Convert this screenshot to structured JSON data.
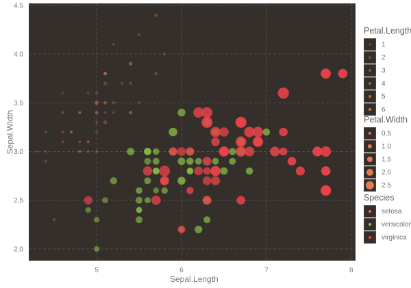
{
  "chart_data": {
    "type": "scatter",
    "title": "",
    "xlabel": "Sepal.Length",
    "ylabel": "Sepal.Width",
    "xlim": [
      4.2,
      8.05
    ],
    "ylim": [
      1.88,
      4.52
    ],
    "xticks": [
      5,
      6,
      7,
      8
    ],
    "yticks": [
      2.0,
      2.5,
      3.0,
      3.5,
      4.0,
      4.5
    ],
    "ytick_labels": [
      "2.0",
      "2.5",
      "3.0",
      "3.5",
      "4.0",
      "4.5"
    ],
    "grid": true,
    "background": "#352f2b",
    "legend_position": "right",
    "aesthetics": {
      "x": "Sepal.Length",
      "y": "Sepal.Width",
      "alpha": "Petal.Length",
      "size": "Petal.Width",
      "color": "Species"
    },
    "colors": {
      "setosa": "#e07b50",
      "versicolor": "#8bc34a",
      "virginica": "#e8434a"
    },
    "legends": {
      "alpha": {
        "title": "Petal.Length",
        "labels": [
          "1",
          "2",
          "3",
          "4",
          "5",
          "6"
        ]
      },
      "size": {
        "title": "Petal.Width",
        "labels": [
          "0.5",
          "1.0",
          "1.5",
          "2.0",
          "2.5"
        ]
      },
      "color": {
        "title": "Species",
        "labels": [
          "setosa",
          "versicolor",
          "virginica"
        ]
      }
    },
    "columns": [
      "Sepal.Length",
      "Sepal.Width",
      "Petal.Length",
      "Petal.Width",
      "Species"
    ],
    "points": [
      [
        5.1,
        3.5,
        1.4,
        0.2,
        "setosa"
      ],
      [
        4.9,
        3.0,
        1.4,
        0.2,
        "setosa"
      ],
      [
        4.7,
        3.2,
        1.3,
        0.2,
        "setosa"
      ],
      [
        4.6,
        3.1,
        1.5,
        0.2,
        "setosa"
      ],
      [
        5.0,
        3.6,
        1.4,
        0.2,
        "setosa"
      ],
      [
        5.4,
        3.9,
        1.7,
        0.4,
        "setosa"
      ],
      [
        4.6,
        3.4,
        1.4,
        0.3,
        "setosa"
      ],
      [
        5.0,
        3.4,
        1.5,
        0.2,
        "setosa"
      ],
      [
        4.4,
        2.9,
        1.4,
        0.2,
        "setosa"
      ],
      [
        4.9,
        3.1,
        1.5,
        0.1,
        "setosa"
      ],
      [
        5.4,
        3.7,
        1.5,
        0.2,
        "setosa"
      ],
      [
        4.8,
        3.4,
        1.6,
        0.2,
        "setosa"
      ],
      [
        4.8,
        3.0,
        1.4,
        0.1,
        "setosa"
      ],
      [
        4.3,
        3.0,
        1.1,
        0.1,
        "setosa"
      ],
      [
        5.8,
        4.0,
        1.2,
        0.2,
        "setosa"
      ],
      [
        5.7,
        4.4,
        1.5,
        0.4,
        "setosa"
      ],
      [
        5.4,
        3.9,
        1.3,
        0.4,
        "setosa"
      ],
      [
        5.1,
        3.5,
        1.4,
        0.3,
        "setosa"
      ],
      [
        5.7,
        3.8,
        1.7,
        0.3,
        "setosa"
      ],
      [
        5.1,
        3.8,
        1.5,
        0.3,
        "setosa"
      ],
      [
        5.4,
        3.4,
        1.7,
        0.2,
        "setosa"
      ],
      [
        5.1,
        3.7,
        1.5,
        0.4,
        "setosa"
      ],
      [
        4.6,
        3.6,
        1.0,
        0.2,
        "setosa"
      ],
      [
        5.1,
        3.3,
        1.7,
        0.5,
        "setosa"
      ],
      [
        4.8,
        3.4,
        1.9,
        0.2,
        "setosa"
      ],
      [
        5.0,
        3.0,
        1.6,
        0.2,
        "setosa"
      ],
      [
        5.0,
        3.4,
        1.6,
        0.4,
        "setosa"
      ],
      [
        5.2,
        3.5,
        1.5,
        0.2,
        "setosa"
      ],
      [
        5.2,
        3.4,
        1.4,
        0.2,
        "setosa"
      ],
      [
        4.7,
        3.2,
        1.6,
        0.2,
        "setosa"
      ],
      [
        4.8,
        3.1,
        1.6,
        0.2,
        "setosa"
      ],
      [
        5.4,
        3.4,
        1.5,
        0.4,
        "setosa"
      ],
      [
        5.2,
        4.1,
        1.5,
        0.1,
        "setosa"
      ],
      [
        5.5,
        4.2,
        1.4,
        0.2,
        "setosa"
      ],
      [
        4.9,
        3.1,
        1.5,
        0.2,
        "setosa"
      ],
      [
        5.0,
        3.2,
        1.2,
        0.2,
        "setosa"
      ],
      [
        5.5,
        3.5,
        1.3,
        0.2,
        "setosa"
      ],
      [
        4.9,
        3.6,
        1.4,
        0.1,
        "setosa"
      ],
      [
        4.4,
        3.0,
        1.3,
        0.2,
        "setosa"
      ],
      [
        5.1,
        3.4,
        1.5,
        0.2,
        "setosa"
      ],
      [
        5.0,
        3.5,
        1.3,
        0.3,
        "setosa"
      ],
      [
        4.5,
        2.3,
        1.3,
        0.3,
        "setosa"
      ],
      [
        4.4,
        3.2,
        1.3,
        0.2,
        "setosa"
      ],
      [
        5.0,
        3.5,
        1.6,
        0.6,
        "setosa"
      ],
      [
        5.1,
        3.8,
        1.9,
        0.4,
        "setosa"
      ],
      [
        4.8,
        3.0,
        1.4,
        0.3,
        "setosa"
      ],
      [
        5.1,
        3.8,
        1.6,
        0.2,
        "setosa"
      ],
      [
        4.6,
        3.2,
        1.4,
        0.2,
        "setosa"
      ],
      [
        5.3,
        3.7,
        1.5,
        0.2,
        "setosa"
      ],
      [
        5.0,
        3.3,
        1.4,
        0.2,
        "setosa"
      ],
      [
        7.0,
        3.2,
        4.7,
        1.4,
        "versicolor"
      ],
      [
        6.4,
        3.2,
        4.5,
        1.5,
        "versicolor"
      ],
      [
        6.9,
        3.1,
        4.9,
        1.5,
        "versicolor"
      ],
      [
        5.5,
        2.3,
        4.0,
        1.3,
        "versicolor"
      ],
      [
        6.5,
        2.8,
        4.6,
        1.5,
        "versicolor"
      ],
      [
        5.7,
        2.8,
        4.5,
        1.3,
        "versicolor"
      ],
      [
        6.3,
        3.3,
        4.7,
        1.6,
        "versicolor"
      ],
      [
        4.9,
        2.4,
        3.3,
        1.0,
        "versicolor"
      ],
      [
        6.6,
        2.9,
        4.6,
        1.3,
        "versicolor"
      ],
      [
        5.2,
        2.7,
        3.9,
        1.4,
        "versicolor"
      ],
      [
        5.0,
        2.0,
        3.5,
        1.0,
        "versicolor"
      ],
      [
        5.9,
        3.0,
        4.2,
        1.5,
        "versicolor"
      ],
      [
        6.0,
        2.2,
        4.0,
        1.0,
        "versicolor"
      ],
      [
        6.1,
        2.9,
        4.7,
        1.4,
        "versicolor"
      ],
      [
        5.6,
        2.9,
        3.6,
        1.3,
        "versicolor"
      ],
      [
        6.7,
        3.1,
        4.4,
        1.4,
        "versicolor"
      ],
      [
        5.6,
        3.0,
        4.5,
        1.5,
        "versicolor"
      ],
      [
        5.8,
        2.7,
        4.1,
        1.0,
        "versicolor"
      ],
      [
        6.2,
        2.2,
        4.5,
        1.5,
        "versicolor"
      ],
      [
        5.6,
        2.5,
        3.9,
        1.1,
        "versicolor"
      ],
      [
        5.9,
        3.2,
        4.8,
        1.8,
        "versicolor"
      ],
      [
        6.1,
        2.8,
        4.0,
        1.3,
        "versicolor"
      ],
      [
        6.3,
        2.5,
        4.9,
        1.5,
        "versicolor"
      ],
      [
        6.1,
        2.8,
        4.7,
        1.2,
        "versicolor"
      ],
      [
        6.4,
        2.9,
        4.3,
        1.3,
        "versicolor"
      ],
      [
        6.6,
        3.0,
        4.4,
        1.4,
        "versicolor"
      ],
      [
        6.8,
        2.8,
        4.8,
        1.4,
        "versicolor"
      ],
      [
        6.7,
        3.0,
        5.0,
        1.7,
        "versicolor"
      ],
      [
        6.0,
        2.9,
        4.5,
        1.5,
        "versicolor"
      ],
      [
        5.7,
        2.6,
        3.5,
        1.0,
        "versicolor"
      ],
      [
        5.5,
        2.4,
        3.8,
        1.1,
        "versicolor"
      ],
      [
        5.5,
        2.4,
        3.7,
        1.0,
        "versicolor"
      ],
      [
        5.8,
        2.7,
        3.9,
        1.2,
        "versicolor"
      ],
      [
        6.0,
        2.7,
        5.1,
        1.6,
        "versicolor"
      ],
      [
        5.4,
        3.0,
        4.5,
        1.5,
        "versicolor"
      ],
      [
        6.0,
        3.4,
        4.5,
        1.6,
        "versicolor"
      ],
      [
        6.7,
        3.1,
        4.7,
        1.5,
        "versicolor"
      ],
      [
        6.3,
        2.3,
        4.4,
        1.3,
        "versicolor"
      ],
      [
        5.6,
        3.0,
        4.1,
        1.3,
        "versicolor"
      ],
      [
        5.5,
        2.5,
        4.0,
        1.3,
        "versicolor"
      ],
      [
        5.5,
        2.6,
        4.4,
        1.2,
        "versicolor"
      ],
      [
        6.1,
        3.0,
        4.6,
        1.4,
        "versicolor"
      ],
      [
        5.8,
        2.6,
        4.0,
        1.2,
        "versicolor"
      ],
      [
        5.0,
        2.3,
        3.3,
        1.0,
        "versicolor"
      ],
      [
        5.6,
        2.7,
        4.2,
        1.3,
        "versicolor"
      ],
      [
        5.7,
        3.0,
        4.2,
        1.2,
        "versicolor"
      ],
      [
        5.7,
        2.9,
        4.2,
        1.3,
        "versicolor"
      ],
      [
        6.2,
        2.9,
        4.3,
        1.3,
        "versicolor"
      ],
      [
        5.1,
        2.5,
        3.0,
        1.1,
        "versicolor"
      ],
      [
        5.7,
        2.8,
        4.1,
        1.3,
        "versicolor"
      ],
      [
        6.3,
        3.3,
        6.0,
        2.5,
        "virginica"
      ],
      [
        5.8,
        2.7,
        5.1,
        1.9,
        "virginica"
      ],
      [
        7.1,
        3.0,
        5.9,
        2.1,
        "virginica"
      ],
      [
        6.3,
        2.9,
        5.6,
        1.8,
        "virginica"
      ],
      [
        6.5,
        3.0,
        5.8,
        2.2,
        "virginica"
      ],
      [
        7.6,
        3.0,
        6.6,
        2.1,
        "virginica"
      ],
      [
        4.9,
        2.5,
        4.5,
        1.7,
        "virginica"
      ],
      [
        7.3,
        2.9,
        6.3,
        1.8,
        "virginica"
      ],
      [
        6.7,
        2.5,
        5.8,
        1.8,
        "virginica"
      ],
      [
        7.2,
        3.6,
        6.1,
        2.5,
        "virginica"
      ],
      [
        6.5,
        3.2,
        5.1,
        2.0,
        "virginica"
      ],
      [
        6.4,
        2.7,
        5.3,
        1.9,
        "virginica"
      ],
      [
        6.8,
        3.0,
        5.5,
        2.1,
        "virginica"
      ],
      [
        5.7,
        2.5,
        5.0,
        2.0,
        "virginica"
      ],
      [
        5.8,
        2.8,
        5.1,
        2.4,
        "virginica"
      ],
      [
        6.4,
        3.2,
        5.3,
        2.3,
        "virginica"
      ],
      [
        6.5,
        3.0,
        5.5,
        1.8,
        "virginica"
      ],
      [
        7.7,
        3.8,
        6.7,
        2.2,
        "virginica"
      ],
      [
        7.7,
        2.6,
        6.9,
        2.3,
        "virginica"
      ],
      [
        6.0,
        2.2,
        5.0,
        1.5,
        "virginica"
      ],
      [
        6.9,
        3.2,
        5.7,
        2.3,
        "virginica"
      ],
      [
        5.6,
        2.8,
        4.9,
        2.0,
        "virginica"
      ],
      [
        7.7,
        2.8,
        6.7,
        2.0,
        "virginica"
      ],
      [
        6.3,
        2.7,
        4.9,
        1.8,
        "virginica"
      ],
      [
        6.7,
        3.3,
        5.7,
        2.1,
        "virginica"
      ],
      [
        7.2,
        3.2,
        6.0,
        1.8,
        "virginica"
      ],
      [
        6.2,
        2.8,
        4.8,
        1.8,
        "virginica"
      ],
      [
        6.1,
        3.0,
        4.9,
        1.8,
        "virginica"
      ],
      [
        6.4,
        2.8,
        5.6,
        2.1,
        "virginica"
      ],
      [
        7.2,
        3.0,
        5.8,
        1.6,
        "virginica"
      ],
      [
        7.4,
        2.8,
        6.1,
        1.9,
        "virginica"
      ],
      [
        7.9,
        3.8,
        6.4,
        2.0,
        "virginica"
      ],
      [
        6.4,
        2.8,
        5.6,
        2.2,
        "virginica"
      ],
      [
        6.3,
        2.8,
        5.1,
        1.5,
        "virginica"
      ],
      [
        6.1,
        2.6,
        5.6,
        1.4,
        "virginica"
      ],
      [
        7.7,
        3.0,
        6.1,
        2.3,
        "virginica"
      ],
      [
        6.3,
        3.4,
        5.6,
        2.4,
        "virginica"
      ],
      [
        6.4,
        3.1,
        5.5,
        1.8,
        "virginica"
      ],
      [
        6.0,
        3.0,
        4.8,
        1.8,
        "virginica"
      ],
      [
        6.9,
        3.1,
        5.4,
        2.1,
        "virginica"
      ],
      [
        6.7,
        3.1,
        5.6,
        2.4,
        "virginica"
      ],
      [
        6.9,
        3.1,
        5.1,
        2.3,
        "virginica"
      ],
      [
        5.8,
        2.7,
        5.1,
        1.9,
        "virginica"
      ],
      [
        6.8,
        3.2,
        5.9,
        2.3,
        "virginica"
      ],
      [
        6.7,
        3.3,
        5.7,
        2.5,
        "virginica"
      ],
      [
        6.7,
        3.0,
        5.2,
        2.3,
        "virginica"
      ],
      [
        6.3,
        2.5,
        5.0,
        1.9,
        "virginica"
      ],
      [
        6.5,
        3.0,
        5.2,
        2.0,
        "virginica"
      ],
      [
        6.2,
        3.4,
        5.4,
        2.3,
        "virginica"
      ],
      [
        5.9,
        3.0,
        5.1,
        1.8,
        "virginica"
      ]
    ]
  }
}
